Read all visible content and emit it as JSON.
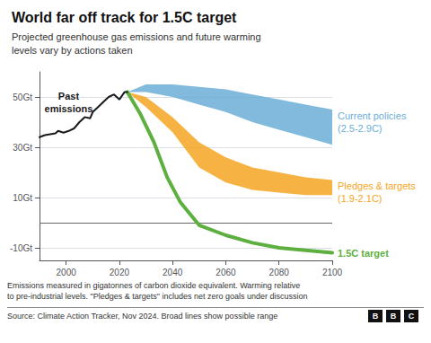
{
  "chart_data": {
    "type": "line",
    "title": "World far off track for 1.5C target",
    "subtitle": "Projected greenhouse gas emissions and future warming\nlevels vary by actions taken",
    "footnotes": [
      "Emissions measured in gigatonnes of carbon dioxide equivalent. Warming relative\nto pre-industrial levels. \"Pledges & targets\" includes net zero goals under discussion",
      "Source: Climate Action Tracker, Nov 2024. Broad lines show possible range"
    ],
    "logo": "BBC",
    "xlim": [
      1990,
      2100
    ],
    "xticks": [
      2000,
      2020,
      2040,
      2060,
      2080,
      2100
    ],
    "ylim": [
      -15,
      60
    ],
    "yticks": [
      {
        "value": 50,
        "label": "50Gt"
      },
      {
        "value": 30,
        "label": "30Gt"
      },
      {
        "value": 10,
        "label": "10Gt"
      },
      {
        "value": -10,
        "label": "-10Gt"
      }
    ],
    "grid": true,
    "hlines": [
      0
    ],
    "series": [
      {
        "label": "Current policies\n(2.5-2.9C)",
        "type": "band",
        "color": "#6baed6",
        "x": [
          2023,
          2030,
          2040,
          2050,
          2060,
          2070,
          2080,
          2090,
          2100
        ],
        "lower": [
          52,
          52,
          50,
          47,
          44,
          40,
          37,
          34,
          31
        ],
        "upper": [
          52,
          55,
          55,
          54,
          53,
          51,
          49,
          47,
          45
        ]
      },
      {
        "label": "Pledges & targets\n(1.9-2.1C)",
        "type": "band",
        "color": "#f5a623",
        "x": [
          2023,
          2030,
          2040,
          2050,
          2060,
          2070,
          2080,
          2090,
          2100
        ],
        "lower": [
          52,
          46,
          36,
          22,
          16,
          13,
          12,
          11,
          11
        ],
        "upper": [
          52,
          50,
          42,
          32,
          26,
          22,
          20,
          18,
          17
        ]
      },
      {
        "label": "1.5C target",
        "type": "line",
        "color": "#5db040",
        "x": [
          2023,
          2028,
          2033,
          2038,
          2043,
          2050,
          2060,
          2070,
          2080,
          2090,
          2100
        ],
        "values": [
          52,
          43,
          32,
          18,
          8,
          -1,
          -5,
          -8,
          -10,
          -11,
          -12
        ]
      },
      {
        "label": "Past\nemissions",
        "type": "line",
        "color": "#1a1a1a",
        "x": [
          1990,
          1992,
          1994,
          1996,
          1997,
          1999,
          2001,
          2003,
          2005,
          2007,
          2009,
          2010,
          2012,
          2014,
          2016,
          2018,
          2020,
          2022,
          2023
        ],
        "values": [
          34,
          34.8,
          35.2,
          35.5,
          36.5,
          35.8,
          36.5,
          37.5,
          40,
          42,
          41.5,
          44,
          46,
          48,
          50,
          51,
          49,
          52,
          52
        ]
      }
    ]
  }
}
